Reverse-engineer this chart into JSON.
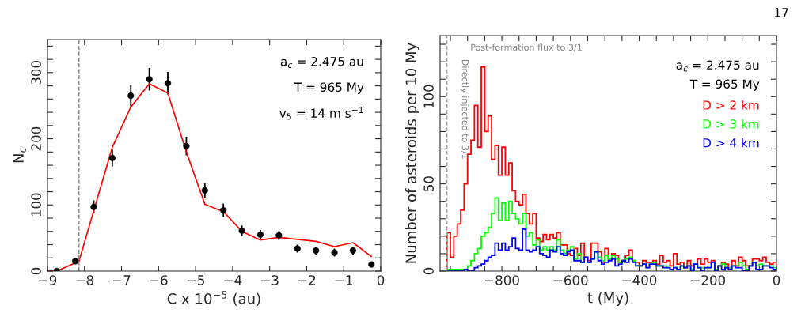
{
  "chart_data": [
    {
      "type": "scatter",
      "xlabel": "C x 10$^{−5}$ (au)",
      "ylabel": "N$_{c}$",
      "x": [
        -8.75,
        -8.25,
        -7.75,
        -7.25,
        -6.75,
        -6.25,
        -5.75,
        -5.25,
        -4.75,
        -4.25,
        -3.75,
        -3.25,
        -2.75,
        -2.25,
        -1.75,
        -1.25,
        -0.75,
        -0.25
      ],
      "series": [
        {
          "type": "scatter",
          "color": "#000000",
          "marker": "circle",
          "values": [
            0,
            15,
            97,
            171,
            265,
            290,
            284,
            189,
            122,
            92,
            61,
            55,
            54,
            34,
            31,
            28,
            31,
            10
          ],
          "errors": [
            1,
            4,
            10,
            13,
            16,
            17,
            17,
            14,
            11,
            10,
            8,
            7,
            7,
            6,
            6,
            6,
            6,
            3
          ]
        },
        {
          "type": "line",
          "color": "#ff0000",
          "x": [
            -9,
            -8.75,
            -8.15,
            -7.25,
            -6.75,
            -6.25,
            -5.75,
            -5.25,
            -4.75,
            -4.25,
            -3.75,
            -3.25,
            -2.75,
            -1.75,
            -1.25,
            -0.75,
            -0.25
          ],
          "values": [
            0,
            0,
            15,
            187,
            248,
            283,
            269,
            180,
            101,
            90,
            60,
            47,
            51,
            45,
            37,
            43,
            22
          ]
        }
      ],
      "xlim": [
        -9,
        0
      ],
      "xticks": [
        -9,
        -8,
        -7,
        -6,
        -5,
        -4,
        -3,
        -2,
        -1,
        0
      ],
      "ylim": [
        0,
        350
      ],
      "yticks": [
        0,
        {
          "value": 20,
          "label": null
        },
        {
          "value": 40,
          "label": null
        },
        {
          "value": 60,
          "label": null
        },
        {
          "value": 80,
          "label": null
        },
        100,
        {
          "value": 120,
          "label": null
        },
        {
          "value": 140,
          "label": null
        },
        {
          "value": 160,
          "label": null
        },
        {
          "value": 180,
          "label": null
        },
        200,
        {
          "value": 220,
          "label": null
        },
        {
          "value": 240,
          "label": null
        },
        {
          "value": 260,
          "label": null
        },
        {
          "value": 280,
          "label": null
        },
        300,
        {
          "value": 320,
          "label": null
        },
        {
          "value": 340,
          "label": null
        }
      ],
      "ref_lines": [
        {
          "axis": "x",
          "value": -8.15,
          "color": "#808080",
          "line_style": "dashed"
        }
      ],
      "annotations": [
        "a$_{c}$ = 2.475 au",
        "T = 965 My",
        "v$_{5}$ = 14 m s$^{−1}$"
      ],
      "grid": false
    },
    {
      "type": "histogram",
      "xlabel": "t (My)",
      "ylabel": "Number of asteroids per 10 My",
      "bins": [
        -960,
        -950,
        -940,
        -930,
        -920,
        -910,
        -900,
        -890,
        -880,
        -870,
        -860,
        -850,
        -840,
        -830,
        -820,
        -810,
        -800,
        -790,
        -780,
        -770,
        -760,
        -750,
        -740,
        -730,
        -720,
        -710,
        -700,
        -690,
        -680,
        -670,
        -660,
        -650,
        -640,
        -630,
        -620,
        -610,
        -600,
        -590,
        -580,
        -570,
        -560,
        -550,
        -540,
        -530,
        -520,
        -510,
        -500,
        -490,
        -480,
        -470,
        -460,
        -450,
        -440,
        -430,
        -420,
        -410,
        -400,
        -390,
        -380,
        -370,
        -360,
        -350,
        -340,
        -330,
        -320,
        -310,
        -300,
        -290,
        -280,
        -270,
        -260,
        -250,
        -240,
        -230,
        -220,
        -210,
        -200,
        -190,
        -180,
        -170,
        -160,
        -150,
        -140,
        -130,
        -120,
        -110,
        -100,
        -90,
        -80,
        -70,
        -60,
        -50,
        -40,
        -30,
        -20,
        -10,
        0
      ],
      "series": [
        {
          "name": "D > 2 km",
          "color": "#ff0000",
          "values": [
            22,
            8,
            20,
            27,
            35,
            50,
            67,
            75,
            95,
            71,
            117,
            80,
            89,
            64,
            72,
            55,
            71,
            55,
            62,
            46,
            40,
            38,
            44,
            33,
            27,
            33,
            19,
            17,
            21,
            18,
            21,
            19,
            22,
            15,
            15,
            10,
            9,
            13,
            9,
            16,
            8,
            6,
            16,
            16,
            11,
            5,
            13,
            7,
            10,
            9,
            5,
            6,
            9,
            12,
            6,
            5,
            3,
            6,
            5,
            5,
            6,
            4,
            9,
            5,
            6,
            3,
            10,
            4,
            5,
            2,
            6,
            3,
            4,
            7,
            4,
            7,
            5,
            6,
            1,
            3,
            5,
            4,
            2,
            6,
            3,
            8,
            6,
            3,
            3,
            7,
            7,
            6,
            8,
            5,
            4,
            5
          ]
        },
        {
          "name": "D > 3 km",
          "color": "#00ff00",
          "values": [
            1,
            1,
            1,
            1,
            1,
            1,
            3,
            6,
            10,
            13,
            20,
            22,
            25,
            33,
            42,
            29,
            39,
            29,
            40,
            33,
            30,
            27,
            33,
            20,
            22,
            15,
            18,
            12,
            14,
            12,
            14,
            12,
            18,
            12,
            10,
            12,
            14,
            7,
            10,
            5,
            8,
            5,
            7,
            11,
            8,
            6,
            9,
            7,
            9,
            7,
            5,
            6,
            7,
            8,
            6,
            3,
            3,
            4,
            2,
            4,
            5,
            3,
            3,
            3,
            2,
            1,
            2,
            1,
            3,
            2,
            3,
            1,
            4,
            2,
            2,
            2,
            2,
            5,
            1,
            3,
            4,
            2,
            2,
            3,
            3,
            5,
            3,
            1,
            3,
            5,
            3,
            4,
            3,
            3,
            3,
            2
          ]
        },
        {
          "name": "D > 4 km",
          "color": "#0000ff",
          "values": [
            0,
            0,
            0,
            0,
            0,
            1,
            0,
            0,
            2,
            3,
            4,
            6,
            8,
            9,
            16,
            12,
            16,
            12,
            14,
            19,
            13,
            12,
            24,
            12,
            11,
            12,
            14,
            10,
            9,
            8,
            12,
            11,
            14,
            10,
            9,
            11,
            12,
            6,
            6,
            5,
            8,
            5,
            7,
            11,
            6,
            4,
            5,
            6,
            7,
            3,
            4,
            6,
            5,
            7,
            5,
            3,
            3,
            4,
            2,
            4,
            4,
            3,
            3,
            2,
            2,
            1,
            2,
            1,
            3,
            2,
            3,
            0,
            4,
            2,
            0,
            2,
            2,
            5,
            0,
            3,
            1,
            2,
            1,
            3,
            2,
            2,
            0,
            0,
            3,
            5,
            1,
            1,
            3,
            3,
            2,
            1
          ]
        }
      ],
      "xlim": [
        -980,
        0
      ],
      "xticks": [
        {
          "value": -950,
          "label": null
        },
        {
          "value": -900,
          "label": null
        },
        {
          "value": -850,
          "label": null
        },
        {
          "value": -800,
          "label": "−800"
        },
        {
          "value": -750,
          "label": null
        },
        {
          "value": -700,
          "label": null
        },
        {
          "value": -650,
          "label": null
        },
        {
          "value": -600,
          "label": "−600"
        },
        {
          "value": -550,
          "label": null
        },
        {
          "value": -500,
          "label": null
        },
        {
          "value": -450,
          "label": null
        },
        {
          "value": -400,
          "label": "−400"
        },
        {
          "value": -350,
          "label": null
        },
        {
          "value": -300,
          "label": null
        },
        {
          "value": -250,
          "label": null
        },
        {
          "value": -200,
          "label": "−200"
        },
        {
          "value": -150,
          "label": null
        },
        {
          "value": -100,
          "label": null
        },
        {
          "value": -50,
          "label": null
        },
        0
      ],
      "ylim": [
        0,
        135
      ],
      "yticks": [
        0,
        {
          "value": 10,
          "label": null
        },
        {
          "value": 20,
          "label": null
        },
        {
          "value": 30,
          "label": null
        },
        {
          "value": 40,
          "label": null
        },
        50,
        {
          "value": 60,
          "label": null
        },
        {
          "value": 70,
          "label": null
        },
        {
          "value": 80,
          "label": null
        },
        {
          "value": 90,
          "label": null
        },
        100,
        {
          "value": 110,
          "label": null
        },
        {
          "value": 120,
          "label": null
        },
        {
          "value": 130,
          "label": null
        }
      ],
      "ref_lines": [
        {
          "axis": "x",
          "value": -960,
          "color": "#a0a0a0",
          "line_style": "dashed"
        }
      ],
      "annotations": [
        "Post-formation flux to 3/1",
        "Directly injected to 3/1",
        "a$_{c}$ = 2.475 au",
        "T = 965 My",
        "17"
      ],
      "legend": "top right",
      "grid": false
    }
  ]
}
